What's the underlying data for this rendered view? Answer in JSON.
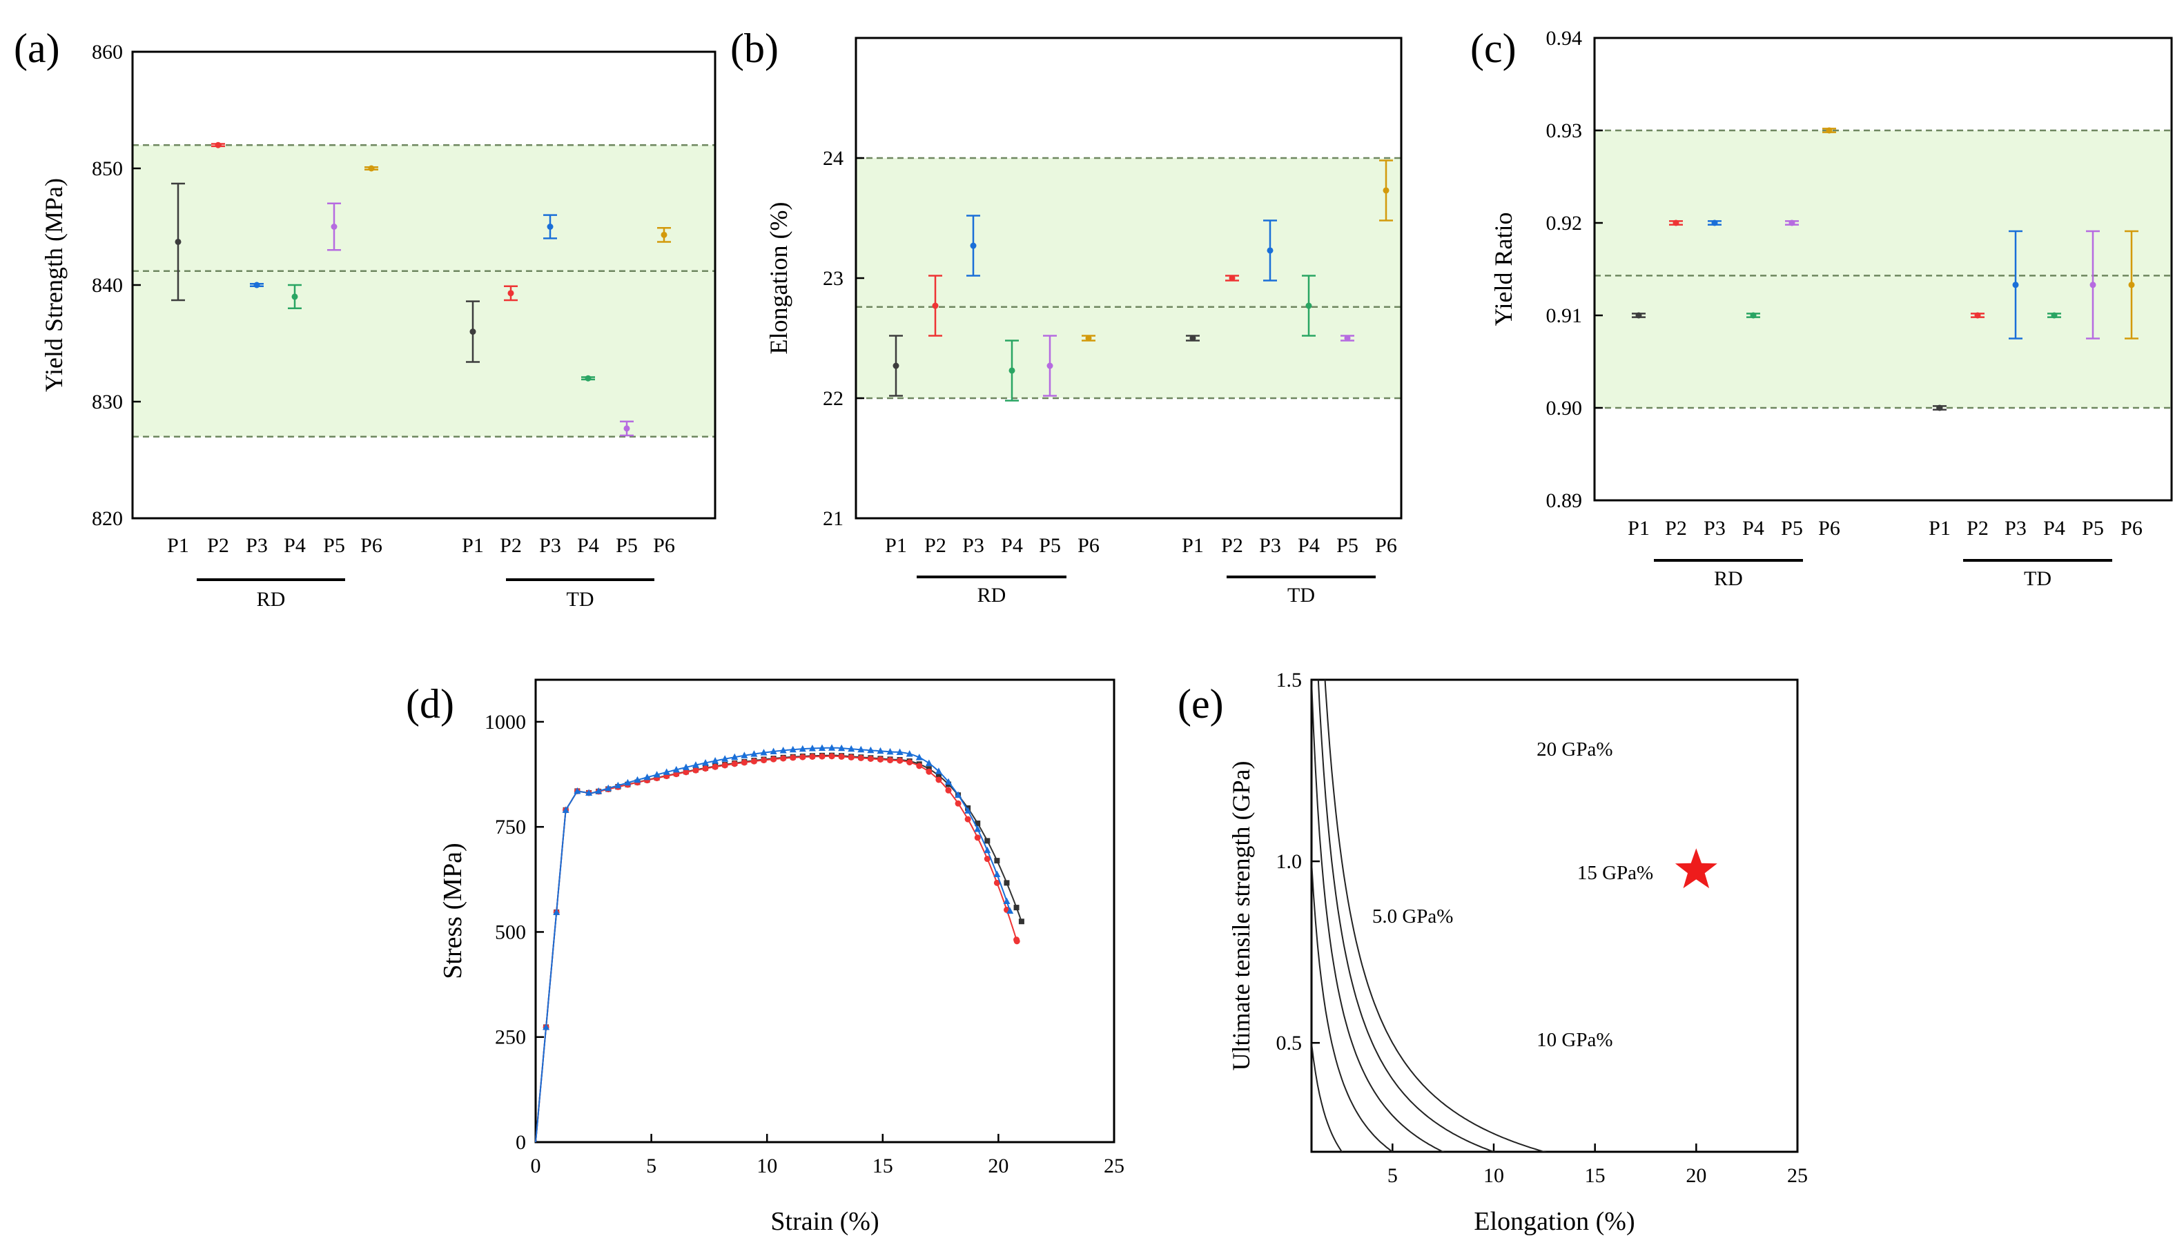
{
  "colors": {
    "P1": "#3d3d3d",
    "P2": "#ee3434",
    "P3": "#1a6fd8",
    "P4": "#2aa563",
    "P5": "#b66be0",
    "P6": "#d39a0c",
    "band": "#eaf8df",
    "dash": "#6f8760",
    "star": "#ee1c1c",
    "curve_black": "#333333",
    "curve_red": "#ee3434",
    "curve_blue": "#1a6fd8"
  },
  "chart_data": [
    {
      "id": "a",
      "panel_label": "(a)",
      "type": "scatter",
      "ylabel": "Yield Strength (MPa)",
      "ylim": [
        820,
        860
      ],
      "yticks": [
        "820",
        "830",
        "840",
        "850",
        "860"
      ],
      "tick_labels": [
        "P1",
        "P2",
        "P3",
        "P4",
        "P5",
        "P6"
      ],
      "groups": [
        "RD",
        "TD"
      ],
      "reference_lines": [
        827,
        841.2,
        852
      ],
      "band": [
        827,
        852
      ],
      "series": [
        {
          "name": "P1",
          "RD": [
            843.7,
            5.0
          ],
          "TD": [
            836.0,
            2.6
          ]
        },
        {
          "name": "P2",
          "RD": [
            852.0,
            0.1
          ],
          "TD": [
            839.3,
            0.6
          ]
        },
        {
          "name": "P3",
          "RD": [
            840.0,
            0.1
          ],
          "TD": [
            845.0,
            1.0
          ]
        },
        {
          "name": "P4",
          "RD": [
            839.0,
            1.0
          ],
          "TD": [
            832.0,
            0.1
          ]
        },
        {
          "name": "P5",
          "RD": [
            845.0,
            2.0
          ],
          "TD": [
            827.7,
            0.6
          ]
        },
        {
          "name": "P6",
          "RD": [
            850.0,
            0.1
          ],
          "TD": [
            844.3,
            0.6
          ]
        }
      ]
    },
    {
      "id": "b",
      "panel_label": "(b)",
      "type": "scatter",
      "ylabel": "Elongation (%)",
      "ylim": [
        21,
        25
      ],
      "yticks": [
        "21",
        "22",
        "23",
        "24"
      ],
      "tick_labels": [
        "P1",
        "P2",
        "P3",
        "P4",
        "P5",
        "P6"
      ],
      "groups": [
        "RD",
        "TD"
      ],
      "reference_lines": [
        22,
        22.76,
        24
      ],
      "band": [
        22,
        24
      ],
      "series": [
        {
          "name": "P1",
          "RD": [
            22.27,
            0.25
          ],
          "TD": [
            22.5,
            0.02
          ]
        },
        {
          "name": "P2",
          "RD": [
            22.77,
            0.25
          ],
          "TD": [
            23.0,
            0.02
          ]
        },
        {
          "name": "P3",
          "RD": [
            23.27,
            0.25
          ],
          "TD": [
            23.23,
            0.25
          ]
        },
        {
          "name": "P4",
          "RD": [
            22.23,
            0.25
          ],
          "TD": [
            22.77,
            0.25
          ]
        },
        {
          "name": "P5",
          "RD": [
            22.27,
            0.25
          ],
          "TD": [
            22.5,
            0.02
          ]
        },
        {
          "name": "P6",
          "RD": [
            22.5,
            0.02
          ],
          "TD": [
            23.73,
            0.25
          ]
        }
      ]
    },
    {
      "id": "c",
      "panel_label": "(c)",
      "type": "scatter",
      "ylabel": "Yield Ratio",
      "ylim": [
        0.89,
        0.94
      ],
      "yticks": [
        "0.89",
        "0.90",
        "0.91",
        "0.92",
        "0.93",
        "0.94"
      ],
      "tick_labels": [
        "P1",
        "P2",
        "P3",
        "P4",
        "P5",
        "P6"
      ],
      "groups": [
        "RD",
        "TD"
      ],
      "reference_lines": [
        0.9,
        0.9143,
        0.93
      ],
      "band": [
        0.9,
        0.93
      ],
      "series": [
        {
          "name": "P1",
          "RD": [
            0.91,
            0.0002
          ],
          "TD": [
            0.9,
            0.0002
          ]
        },
        {
          "name": "P2",
          "RD": [
            0.92,
            0.0002
          ],
          "TD": [
            0.91,
            0.0002
          ]
        },
        {
          "name": "P3",
          "RD": [
            0.92,
            0.0002
          ],
          "TD": [
            0.9133,
            0.0058
          ]
        },
        {
          "name": "P4",
          "RD": [
            0.91,
            0.0002
          ],
          "TD": [
            0.91,
            0.0002
          ]
        },
        {
          "name": "P5",
          "RD": [
            0.92,
            0.0002
          ],
          "TD": [
            0.9133,
            0.0058
          ]
        },
        {
          "name": "P6",
          "RD": [
            0.93,
            0.0002
          ],
          "TD": [
            0.9133,
            0.0058
          ]
        }
      ]
    },
    {
      "id": "d",
      "panel_label": "(d)",
      "type": "line",
      "xlabel": "Strain (%)",
      "ylabel": "Stress (MPa)",
      "xlim": [
        0,
        25
      ],
      "ylim": [
        0,
        1100
      ],
      "xticks": [
        "0",
        "5",
        "10",
        "15",
        "20",
        "25"
      ],
      "yticks": [
        "0",
        "250",
        "500",
        "750",
        "1000"
      ],
      "series": [
        {
          "name": "black",
          "marker": "square",
          "peak": 920,
          "end_x": 21.0,
          "end_y": 525
        },
        {
          "name": "red",
          "marker": "circle",
          "peak": 918,
          "end_x": 20.8,
          "end_y": 478
        },
        {
          "name": "blue",
          "marker": "triangle",
          "peak": 938,
          "end_x": 20.5,
          "end_y": 550
        }
      ]
    },
    {
      "id": "e",
      "panel_label": "(e)",
      "type": "line",
      "xlabel": "Elongation (%)",
      "ylabel": "Ultimate tensile strength (GPa)",
      "xlim": [
        1,
        25
      ],
      "ylim": [
        0.2,
        1.5
      ],
      "xticks": [
        "5",
        "10",
        "15",
        "20",
        "25"
      ],
      "yticks": [
        "0.5",
        "1.0",
        "1.5"
      ],
      "iso_products": [
        5,
        10,
        15,
        20,
        25
      ],
      "iso_labels": [
        {
          "text": "5.0 GPa%",
          "x": 6.0,
          "y": 0.85
        },
        {
          "text": "10 GPa%",
          "x": 14.0,
          "y": 0.51
        },
        {
          "text": "15 GPa%",
          "x": 16.0,
          "y": 0.97
        },
        {
          "text": "20 GPa%",
          "x": 14.0,
          "y": 1.31
        }
      ],
      "point": {
        "x": 20,
        "y": 0.975,
        "marker": "star"
      }
    }
  ]
}
